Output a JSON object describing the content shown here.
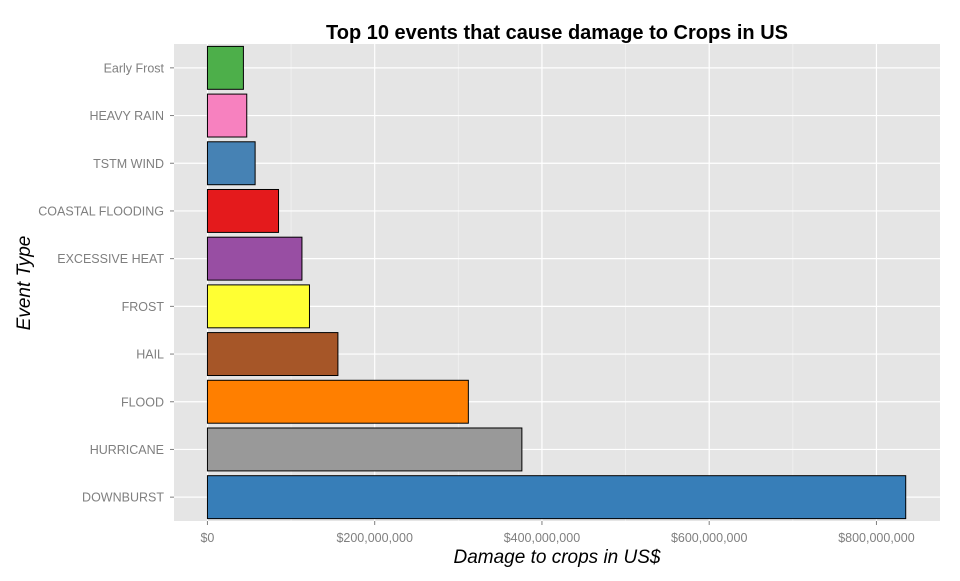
{
  "chart_data": {
    "type": "bar",
    "orientation": "horizontal",
    "title": "Top 10 events that cause damage to Crops in US",
    "xlabel": "Damage to crops in US$",
    "ylabel": "Event Type",
    "categories": [
      "DOWNBURST",
      "HURRICANE",
      "FLOOD",
      "HAIL",
      "FROST",
      "EXCESSIVE HEAT",
      "COASTAL FLOODING",
      "TSTM WIND",
      "HEAVY RAIN",
      "Early Frost"
    ],
    "values": [
      835000000,
      376000000,
      312000000,
      156000000,
      122000000,
      113000000,
      85000000,
      57000000,
      47000000,
      43000000
    ],
    "colors": [
      "#377EB8",
      "#999999",
      "#FF7F00",
      "#A65628",
      "#FFFF33",
      "#984EA3",
      "#E41A1C",
      "#4682B4",
      "#F781BF",
      "#4DAF4A"
    ],
    "xlim": [
      -40000000,
      876000000
    ],
    "xticks": [
      0,
      200000000,
      400000000,
      600000000,
      800000000
    ],
    "xtick_labels": [
      "$0",
      "$200,000,000",
      "$400,000,000",
      "$600,000,000",
      "$800,000,000"
    ],
    "grid": true,
    "legend": "none",
    "panel_background": "#E5E5E5",
    "grid_color": "#FFFFFF"
  }
}
